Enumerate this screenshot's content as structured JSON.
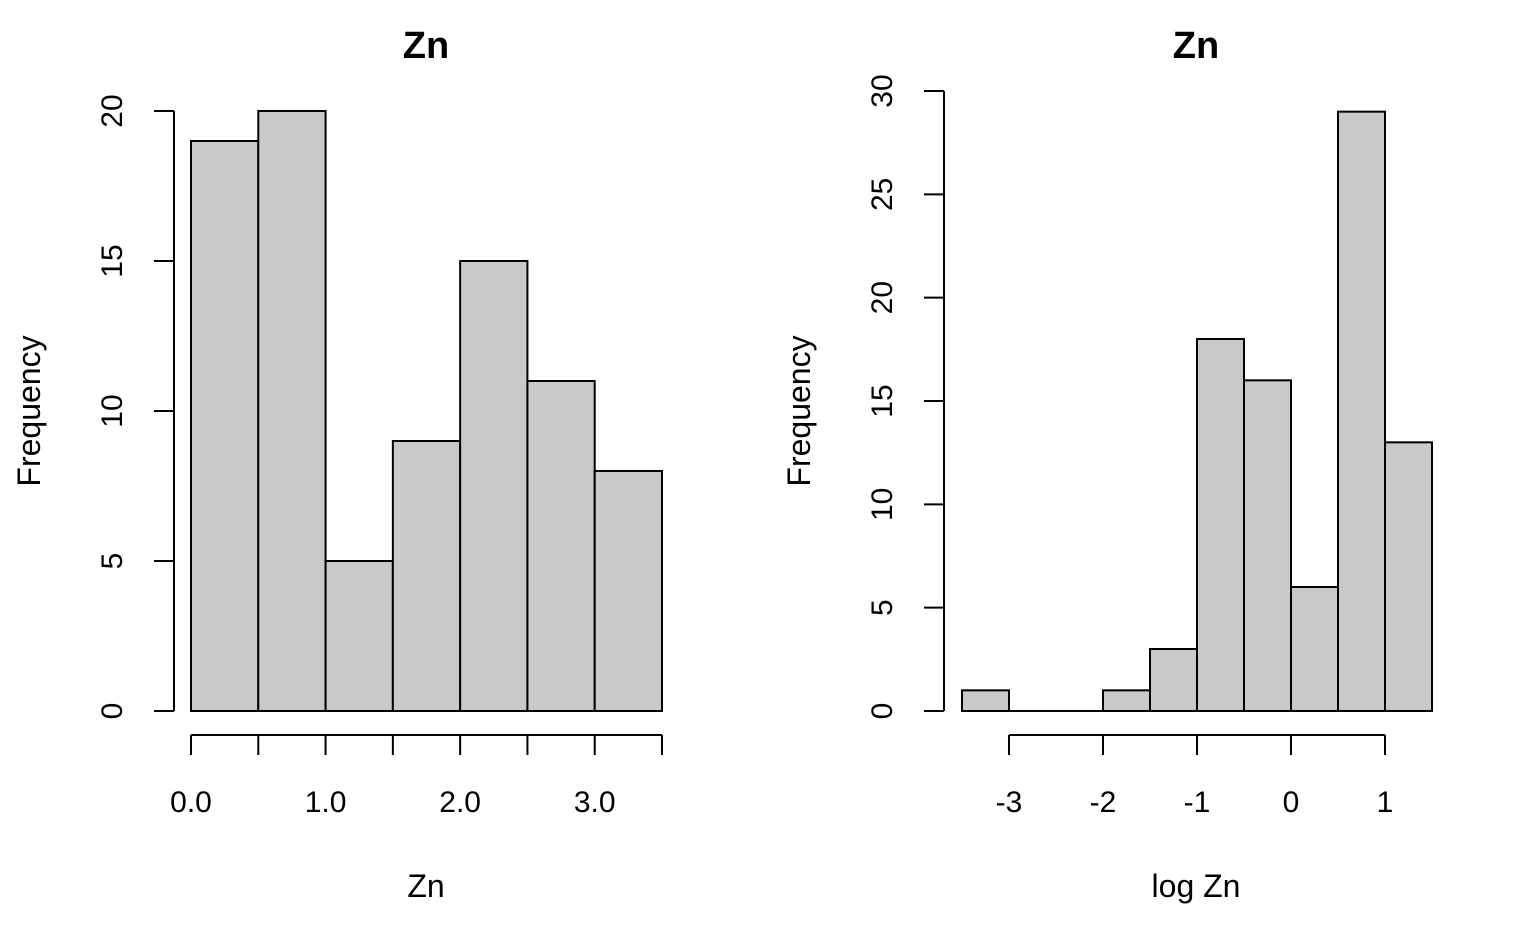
{
  "chart_data": [
    {
      "type": "bar",
      "title": "Zn",
      "xlabel": "Zn",
      "ylabel": "Frequency",
      "bin_edges": [
        0.0,
        0.5,
        1.0,
        1.5,
        2.0,
        2.5,
        3.0,
        3.5
      ],
      "values": [
        19,
        20,
        5,
        9,
        15,
        11,
        8
      ],
      "xlim": [
        0.0,
        3.5
      ],
      "ylim": [
        0,
        20
      ],
      "x_ticks": [
        0.0,
        0.5,
        1.0,
        1.5,
        2.0,
        2.5,
        3.0,
        3.5
      ],
      "x_tick_labels": [
        "0.0",
        "",
        "1.0",
        "",
        "2.0",
        "",
        "3.0",
        ""
      ],
      "y_ticks": [
        0,
        5,
        10,
        15,
        20
      ],
      "y_tick_labels": [
        "0",
        "5",
        "10",
        "15",
        "20"
      ],
      "bar_color": "#c9c9c9",
      "grid": false
    },
    {
      "type": "bar",
      "title": "Zn",
      "xlabel": "log Zn",
      "ylabel": "Frequency",
      "bin_edges": [
        -3.5,
        -3.0,
        -2.5,
        -2.0,
        -1.5,
        -1.0,
        -0.5,
        0.0,
        0.5,
        1.0,
        1.5
      ],
      "values": [
        1,
        0,
        0,
        1,
        3,
        18,
        16,
        6,
        29,
        13
      ],
      "xlim": [
        -3.5,
        1.5
      ],
      "ylim": [
        0,
        30
      ],
      "x_ticks": [
        -3,
        -2,
        -1,
        0,
        1
      ],
      "x_tick_labels": [
        "-3",
        "-2",
        "-1",
        "0",
        "1"
      ],
      "y_ticks": [
        0,
        5,
        10,
        15,
        20,
        25,
        30
      ],
      "y_tick_labels": [
        "0",
        "5",
        "10",
        "15",
        "20",
        "25",
        "30"
      ],
      "bar_color": "#c9c9c9",
      "grid": false
    }
  ]
}
